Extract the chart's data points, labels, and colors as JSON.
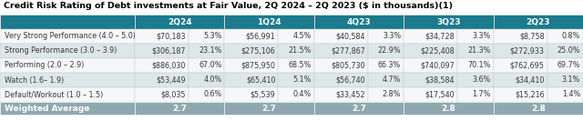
{
  "title": "Credit Risk Rating of Debt investments at Fair Value, 2Q 2024 – 2Q 2023 ($ in thousands)(1)",
  "col_headers": [
    "2Q24",
    "1Q24",
    "4Q23",
    "3Q23",
    "2Q23"
  ],
  "rows": [
    {
      "label": "Very Strong Performance (4.0 – 5.0)",
      "data": [
        [
          "$70,183",
          "5.3%"
        ],
        [
          "$56,991",
          "4.5%"
        ],
        [
          "$40,584",
          "3.3%"
        ],
        [
          "$34,728",
          "3.3%"
        ],
        [
          "$8,758",
          "0.8%"
        ]
      ]
    },
    {
      "label": "Strong Performance (3.0 – 3.9)",
      "data": [
        [
          "$306,187",
          "23.1%"
        ],
        [
          "$275,106",
          "21.5%"
        ],
        [
          "$277,867",
          "22.9%"
        ],
        [
          "$225,408",
          "21.3%"
        ],
        [
          "$272,933",
          "25.0%"
        ]
      ]
    },
    {
      "label": "Performing (2.0 – 2.9)",
      "data": [
        [
          "$886,030",
          "67.0%"
        ],
        [
          "$875,950",
          "68.5%"
        ],
        [
          "$805,730",
          "66.3%"
        ],
        [
          "$740,097",
          "70.1%"
        ],
        [
          "$762,695",
          "69.7%"
        ]
      ]
    },
    {
      "label": "Watch (1.6– 1.9)",
      "data": [
        [
          "$53,449",
          "4.0%"
        ],
        [
          "$65,410",
          "5.1%"
        ],
        [
          "$56,740",
          "4.7%"
        ],
        [
          "$38,584",
          "3.6%"
        ],
        [
          "$34,410",
          "3.1%"
        ]
      ]
    },
    {
      "label": "Default/Workout (1.0 – 1.5)",
      "data": [
        [
          "$8,035",
          "0.6%"
        ],
        [
          "$5,539",
          "0.4%"
        ],
        [
          "$33,452",
          "2.8%"
        ],
        [
          "$17,540",
          "1.7%"
        ],
        [
          "$15,216",
          "1.4%"
        ]
      ]
    }
  ],
  "weighted_avg": [
    "2.7",
    "2.7",
    "2.7",
    "2.8",
    "2.8"
  ],
  "header_bg": "#1b7a8c",
  "header_text": "#ffffff",
  "row_bg_light": "#f5f7f8",
  "row_bg_dark": "#dde6e9",
  "footer_bg": "#8fa8b0",
  "footer_text": "#ffffff",
  "text_color": "#3a3a3a",
  "title_fontsize": 6.8,
  "cell_fontsize": 5.8,
  "header_fontsize": 6.5,
  "footer_fontsize": 6.5
}
